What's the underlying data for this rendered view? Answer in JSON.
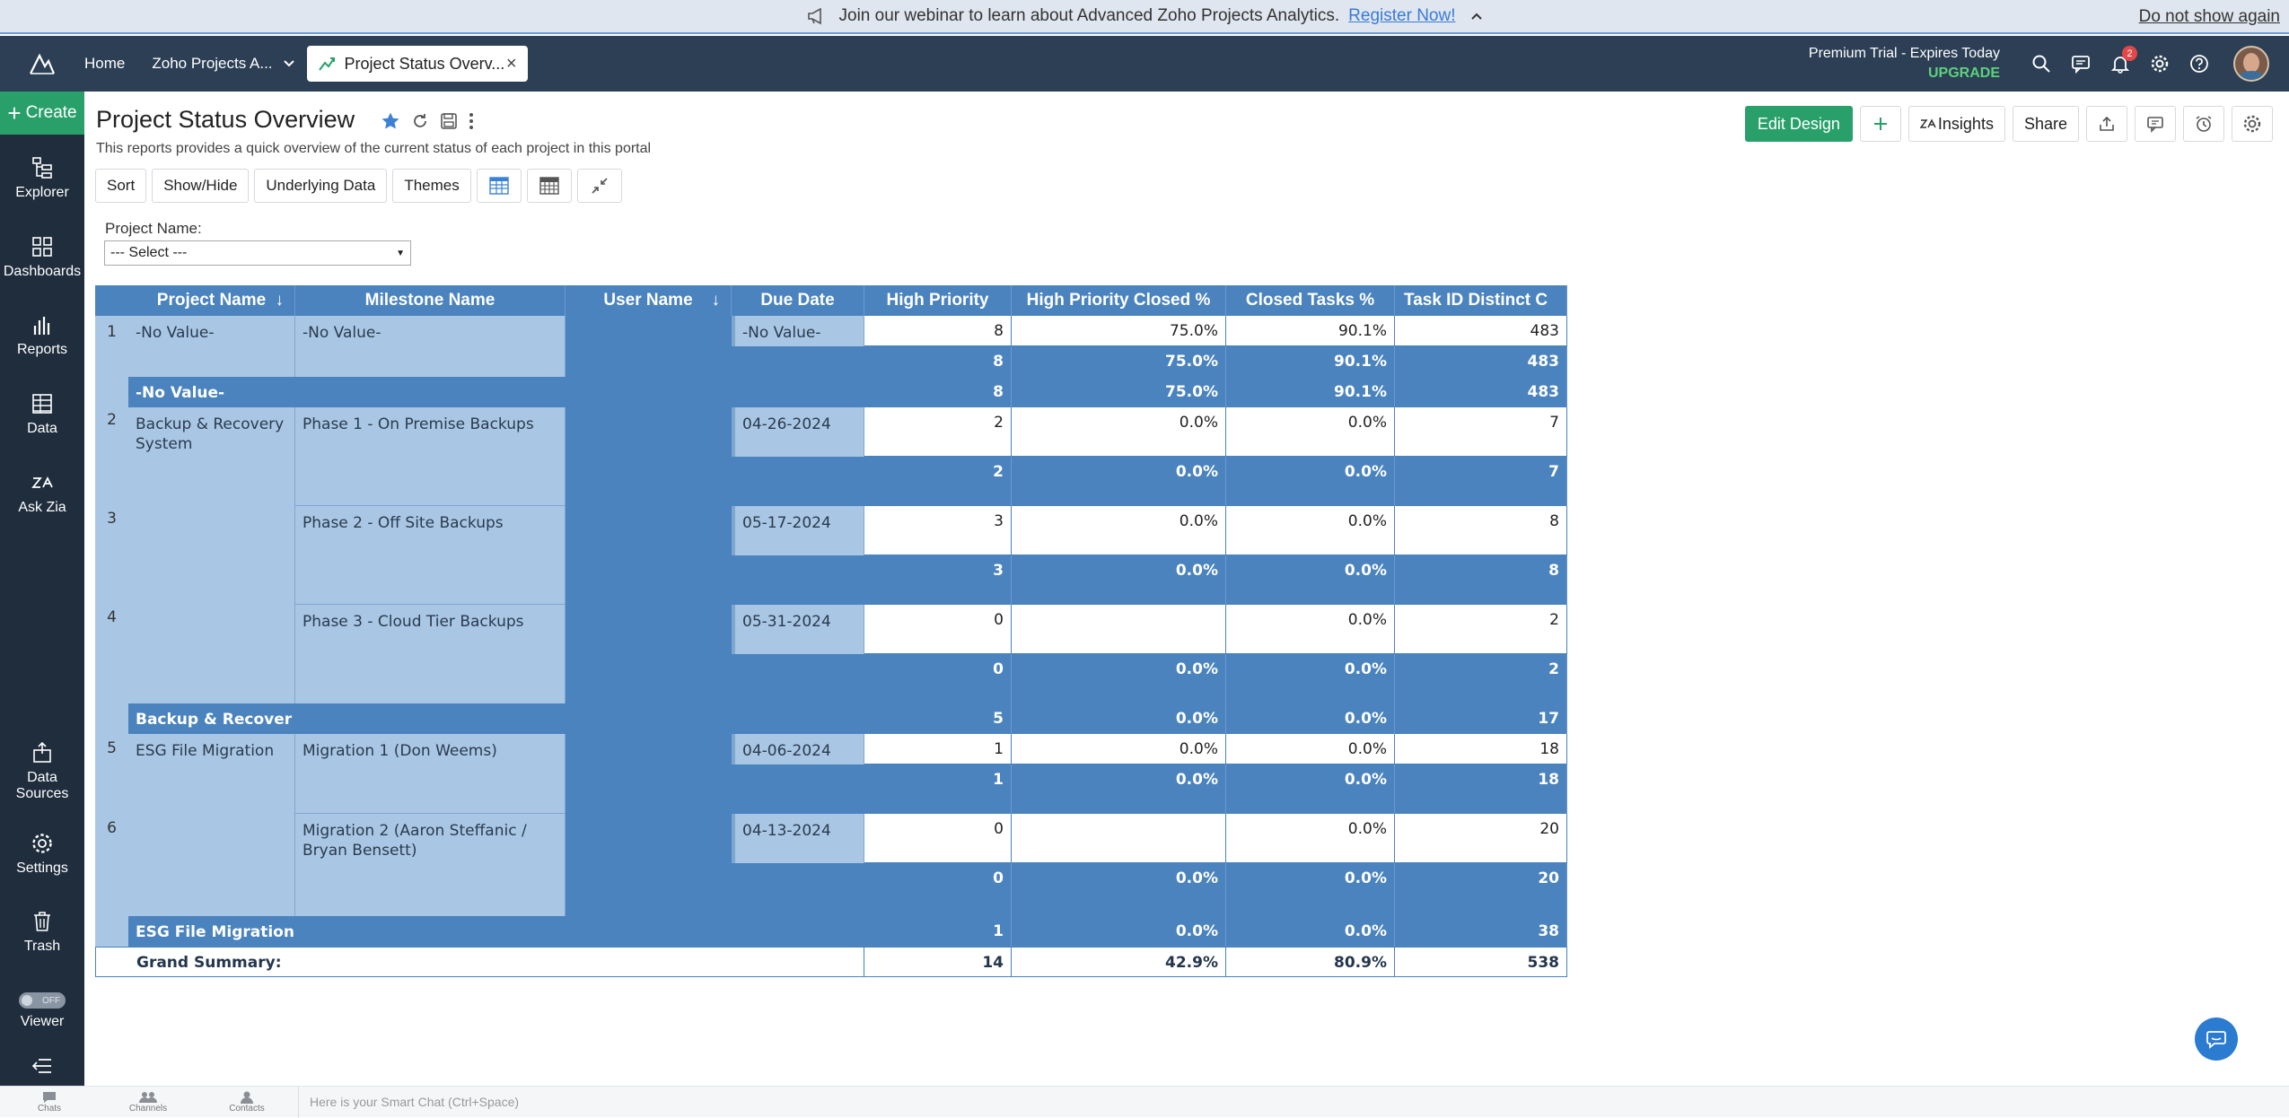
{
  "banner": {
    "text": "Join our webinar to learn about Advanced Zoho Projects Analytics.",
    "link": "Register Now!",
    "dismiss": "Do not show again"
  },
  "topnav": {
    "home": "Home",
    "workspace": "Zoho Projects A...",
    "tab_label": "Project Status Overv...",
    "trial_line": "Premium Trial - Expires Today",
    "upgrade": "UPGRADE",
    "notification_count": "2"
  },
  "sidebar": {
    "create": "Create",
    "items": [
      {
        "label": "Explorer"
      },
      {
        "label": "Dashboards"
      },
      {
        "label": "Reports"
      },
      {
        "label": "Data"
      },
      {
        "label": "Ask Zia"
      },
      {
        "label": "Data Sources"
      },
      {
        "label": "Settings"
      },
      {
        "label": "Trash"
      },
      {
        "label": "Viewer",
        "toggle": "OFF"
      }
    ]
  },
  "report": {
    "title": "Project Status Overview",
    "subtitle": "This reports provides a quick overview of the current status of each project in this portal",
    "actions": {
      "edit_design": "Edit Design",
      "insights": "Insights",
      "share": "Share"
    },
    "toolbar": {
      "sort": "Sort",
      "show_hide": "Show/Hide",
      "underlying": "Underlying Data",
      "themes": "Themes"
    },
    "filter": {
      "label": "Project Name:",
      "value": "--- Select ---"
    }
  },
  "table": {
    "headers": [
      "Project Name",
      "Milestone Name",
      "User Name",
      "Due Date",
      "High Priority",
      "High Priority Closed %",
      "Closed Tasks %",
      "Task ID Distinct C"
    ],
    "row_numbers": [
      "1",
      "2",
      "3",
      "4",
      "5",
      "6"
    ],
    "projects": [
      "-No Value-",
      "Backup & Recovery System",
      "ESG File Migration"
    ],
    "project_subtotals": [
      "-No Value-",
      "Backup & Recover",
      "ESG File Migration"
    ],
    "milestones": [
      "-No Value-",
      "Phase 1 - On Premise Backups",
      "Phase 2 - Off Site Backups",
      "Phase 3 - Cloud Tier Backups",
      "Migration 1 (Don Weems)",
      "Migration 2 (Aaron Steffanic / Bryan Bensett)"
    ],
    "due_dates": [
      "-No Value-",
      "04-26-2024",
      "05-17-2024",
      "05-31-2024",
      "04-06-2024",
      "04-13-2024"
    ],
    "detail": [
      [
        "8",
        "75.0%",
        "90.1%",
        "483"
      ],
      [
        "2",
        "0.0%",
        "0.0%",
        "7"
      ],
      [
        "3",
        "0.0%",
        "0.0%",
        "8"
      ],
      [
        "0",
        "",
        "0.0%",
        "2"
      ],
      [
        "1",
        "0.0%",
        "0.0%",
        "18"
      ],
      [
        "0",
        "",
        "0.0%",
        "20"
      ]
    ],
    "milestone_totals": [
      [
        "8",
        "75.0%",
        "90.1%",
        "483"
      ],
      [
        "2",
        "0.0%",
        "0.0%",
        "7"
      ],
      [
        "3",
        "0.0%",
        "0.0%",
        "8"
      ],
      [
        "0",
        "0.0%",
        "0.0%",
        "2"
      ],
      [
        "1",
        "0.0%",
        "0.0%",
        "18"
      ],
      [
        "0",
        "0.0%",
        "0.0%",
        "20"
      ]
    ],
    "project_totals": [
      [
        "8",
        "75.0%",
        "90.1%",
        "483"
      ],
      [
        "5",
        "0.0%",
        "0.0%",
        "17"
      ],
      [
        "1",
        "0.0%",
        "0.0%",
        "38"
      ]
    ],
    "grand_label": "Grand Summary:",
    "grand": [
      "14",
      "42.9%",
      "80.9%",
      "538"
    ]
  },
  "chatbar": {
    "tabs": [
      "Chats",
      "Channels",
      "Contacts"
    ],
    "placeholder": "Here is your Smart Chat (Ctrl+Space)"
  },
  "colors": {
    "topnav": "#2c3f55",
    "sidebar": "#1f2d3d",
    "accent_green": "#29a06a",
    "table_header": "#4a83bd",
    "table_label": "#a9c7e4"
  }
}
